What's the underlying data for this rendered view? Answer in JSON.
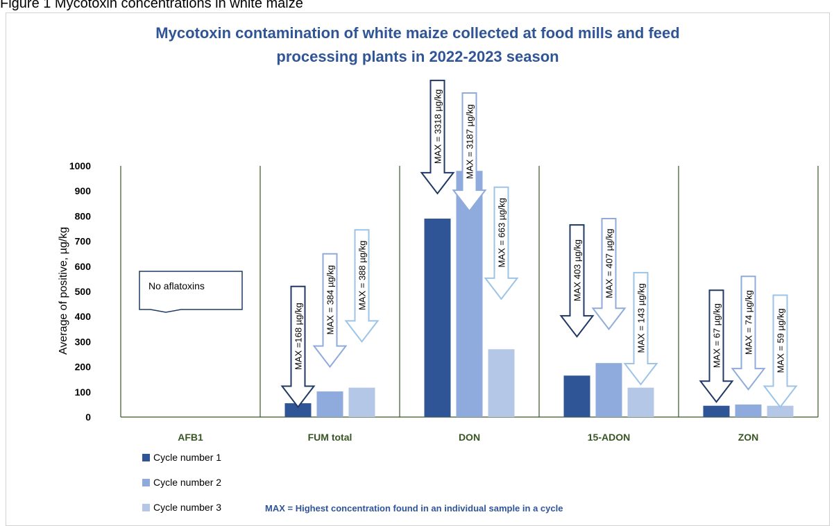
{
  "figure_caption": "Figure 1 Mycotoxin concentrations in white maize",
  "colors": {
    "title": "#2f5597",
    "category_label": "#375623",
    "separator": "#375623",
    "cycle1": "#2f5597",
    "cycle2": "#8faadc",
    "cycle3": "#b4c7e7",
    "note": "#2f5597"
  },
  "chart_data": {
    "type": "bar",
    "title": "Mycotoxin contamination of white maize collected at food mills and feed processing plants in 2022-2023 season",
    "title_lines": [
      "Mycotoxin contamination of white maize collected at food mills and feed",
      "processing plants in 2022-2023 season"
    ],
    "ylabel": "Average of positive, µg/kg",
    "xlabel": "",
    "ylim": [
      0,
      1000
    ],
    "yticks": [
      0,
      100,
      200,
      300,
      400,
      500,
      600,
      700,
      800,
      900,
      1000
    ],
    "categories": [
      "AFB1",
      "FUM total",
      "DON",
      "15-ADON",
      "ZON"
    ],
    "series": [
      {
        "name": "Cycle number 1",
        "color": "#2f5597",
        "values": [
          0,
          55,
          790,
          165,
          45
        ]
      },
      {
        "name": "Cycle number 2",
        "color": "#8faadc",
        "values": [
          0,
          102,
          980,
          215,
          50
        ]
      },
      {
        "name": "Cycle number 3",
        "color": "#b4c7e7",
        "values": [
          0,
          117,
          270,
          117,
          45
        ]
      }
    ],
    "max_annotations": [
      {
        "category": "FUM total",
        "series": 0,
        "label": "MAX =168 µg/kg",
        "tip": 40,
        "top": 520
      },
      {
        "category": "FUM total",
        "series": 1,
        "label": "MAX = 384 µg/kg",
        "tip": 200,
        "top": 650
      },
      {
        "category": "FUM total",
        "series": 2,
        "label": "MAX = 388 µg/kg",
        "tip": 300,
        "top": 745
      },
      {
        "category": "DON",
        "series": 0,
        "label": "MAX = 3318 µg/kg",
        "tip": 890,
        "top": 1340
      },
      {
        "category": "DON",
        "series": 1,
        "label": "MAX = 3187 µg/kg",
        "tip": 820,
        "top": 1290
      },
      {
        "category": "DON",
        "series": 2,
        "label": "MAX = 663 µg/kg",
        "tip": 470,
        "top": 915
      },
      {
        "category": "15-ADON",
        "series": 0,
        "label": "MAX 403 µg/kg",
        "tip": 320,
        "top": 765
      },
      {
        "category": "15-ADON",
        "series": 1,
        "label": "MAX = 407 µg/kg",
        "tip": 350,
        "top": 790
      },
      {
        "category": "15-ADON",
        "series": 2,
        "label": "MAX = 143 µg/kg",
        "tip": 130,
        "top": 575
      },
      {
        "category": "ZON",
        "series": 0,
        "label": "MAX = 67 µg/kg",
        "tip": 60,
        "top": 505
      },
      {
        "category": "ZON",
        "series": 1,
        "label": "MAX = 74 µg/kg",
        "tip": 110,
        "top": 560
      },
      {
        "category": "ZON",
        "series": 2,
        "label": "MAX = 59 µg/kg",
        "tip": 40,
        "top": 485
      }
    ],
    "no_data_note": "No aflatoxins",
    "footnote": "MAX = Highest concentration found in an individual sample in a cycle",
    "legend_position": "bottom-left"
  }
}
